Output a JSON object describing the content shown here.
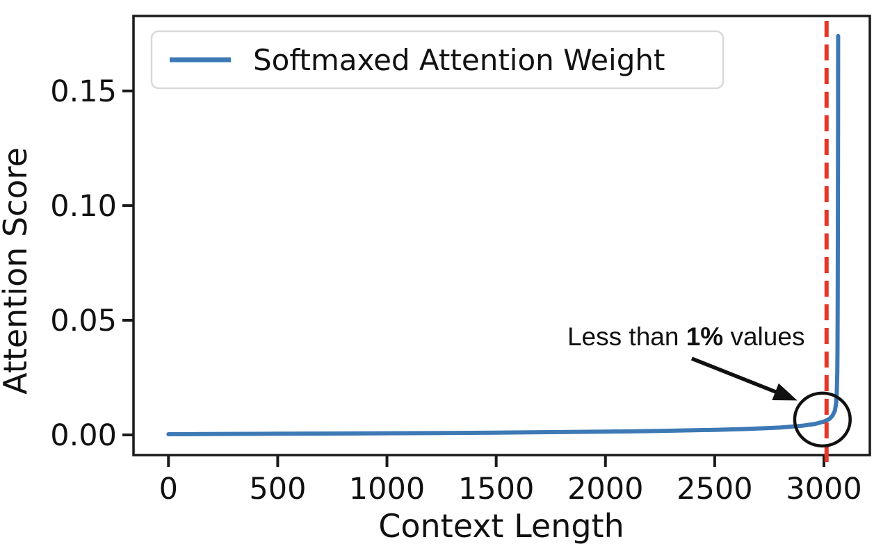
{
  "chart_data": {
    "type": "line",
    "title": "",
    "xlabel": "Context Length",
    "ylabel": "Attention Score",
    "grid": false,
    "background": "#ffffff",
    "spine_color": "#1a1a1a",
    "xlim": [
      -160,
      3210
    ],
    "ylim": [
      -0.0088,
      0.1827
    ],
    "xticks": {
      "values": [
        0,
        500,
        1000,
        1500,
        2000,
        2500,
        3000
      ],
      "labels": [
        "0",
        "500",
        "1000",
        "1500",
        "2000",
        "2500",
        "3000"
      ]
    },
    "yticks": {
      "values": [
        0,
        0.05,
        0.1,
        0.15
      ],
      "labels": [
        "0.00",
        "0.05",
        "0.10",
        "0.15"
      ]
    },
    "legend": {
      "position": "upper-left",
      "entries": [
        {
          "label": "Softmaxed Attention Weight",
          "color": "#3d79b4"
        }
      ]
    },
    "series": [
      {
        "name": "Softmaxed Attention Weight",
        "color": "#3d79b4",
        "points": [
          [
            0,
            0.0003
          ],
          [
            250,
            0.0004
          ],
          [
            500,
            0.0005
          ],
          [
            750,
            0.0006
          ],
          [
            1000,
            0.0007
          ],
          [
            1250,
            0.0008
          ],
          [
            1500,
            0.001
          ],
          [
            1750,
            0.0012
          ],
          [
            2000,
            0.0014
          ],
          [
            2250,
            0.0017
          ],
          [
            2500,
            0.0022
          ],
          [
            2650,
            0.0026
          ],
          [
            2800,
            0.0032
          ],
          [
            2900,
            0.004
          ],
          [
            2960,
            0.0048
          ],
          [
            3000,
            0.0058
          ],
          [
            3025,
            0.007
          ],
          [
            3040,
            0.0085
          ],
          [
            3050,
            0.0105
          ],
          [
            3056,
            0.014
          ],
          [
            3059,
            0.019
          ],
          [
            3061,
            0.027
          ],
          [
            3062,
            0.038
          ],
          [
            3063,
            0.06
          ],
          [
            3064,
            0.1
          ],
          [
            3064.5,
            0.14
          ],
          [
            3065,
            0.174
          ]
        ]
      }
    ],
    "vline": {
      "x": 3012,
      "color": "#e53628",
      "style": "dashed"
    },
    "annotations": {
      "label": {
        "x": 2369,
        "y": 0.0391,
        "part1": "Less than ",
        "bold": "1%",
        "part2": " values",
        "color": "#111111"
      },
      "arrow": {
        "x1": 2395,
        "y1": 0.0333,
        "x2": 2878,
        "y2": 0.015,
        "color": "#111111"
      },
      "circle": {
        "cx": 2993,
        "cy": 0.0067,
        "rx": 127,
        "ry": 0.0115,
        "color": "#111111"
      }
    }
  }
}
